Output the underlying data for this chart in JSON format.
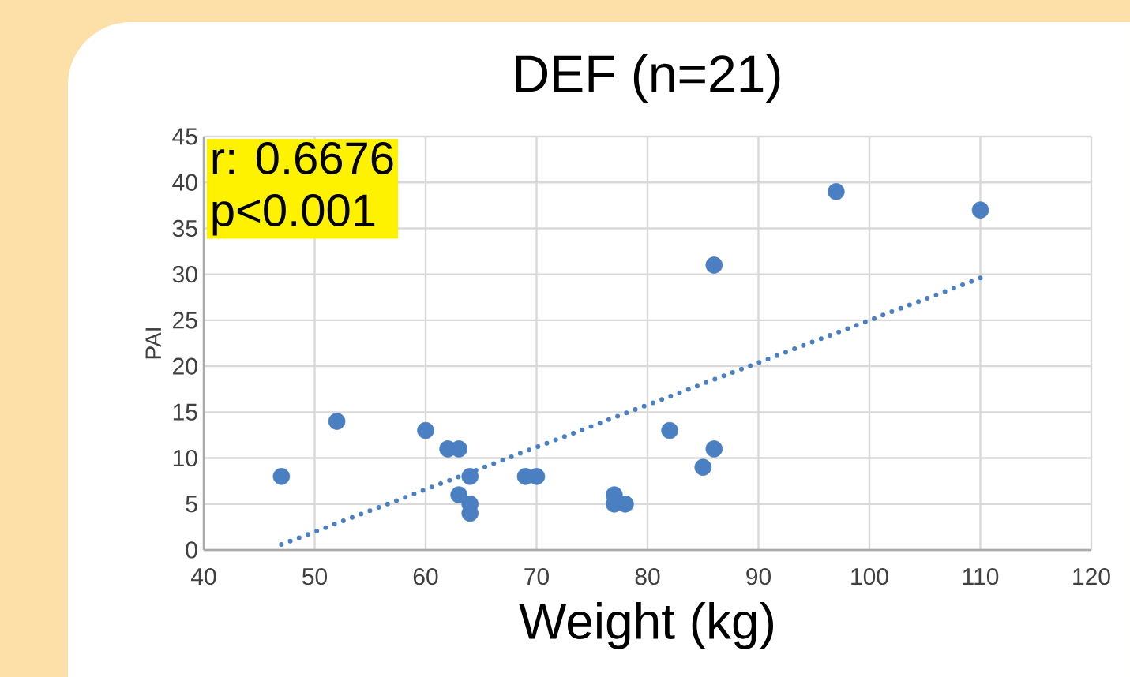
{
  "chart_data": {
    "type": "scatter",
    "title": "DEF (n=21)",
    "xlabel": "Weight (kg)",
    "ylabel": "PAI",
    "annotations": [
      "r: 0.6676",
      "p<0.001"
    ],
    "series": [
      {
        "marker": "circle",
        "color": "#4a7fc1",
        "x": [
          47,
          52,
          60,
          62,
          63,
          63,
          64,
          64,
          64,
          69,
          70,
          77,
          77,
          78,
          82,
          85,
          86,
          86,
          97,
          110
        ],
        "values": [
          8,
          14,
          13,
          11,
          11,
          6,
          8,
          5,
          4,
          8,
          8,
          6,
          5,
          5,
          13,
          9,
          11,
          31,
          39,
          37
        ]
      },
      {
        "type": "line",
        "color": "#4a7fc1",
        "line_style": "dotted",
        "x": [
          47,
          110
        ],
        "values": [
          0.6,
          29.6
        ]
      }
    ],
    "xlim": [
      40,
      120
    ],
    "ylim": [
      0,
      45
    ],
    "xticks": [
      40,
      50,
      60,
      70,
      80,
      90,
      100,
      110,
      120
    ],
    "yticks": [
      0,
      5,
      10,
      15,
      20,
      25,
      30,
      35,
      40,
      45
    ],
    "grid": true
  }
}
